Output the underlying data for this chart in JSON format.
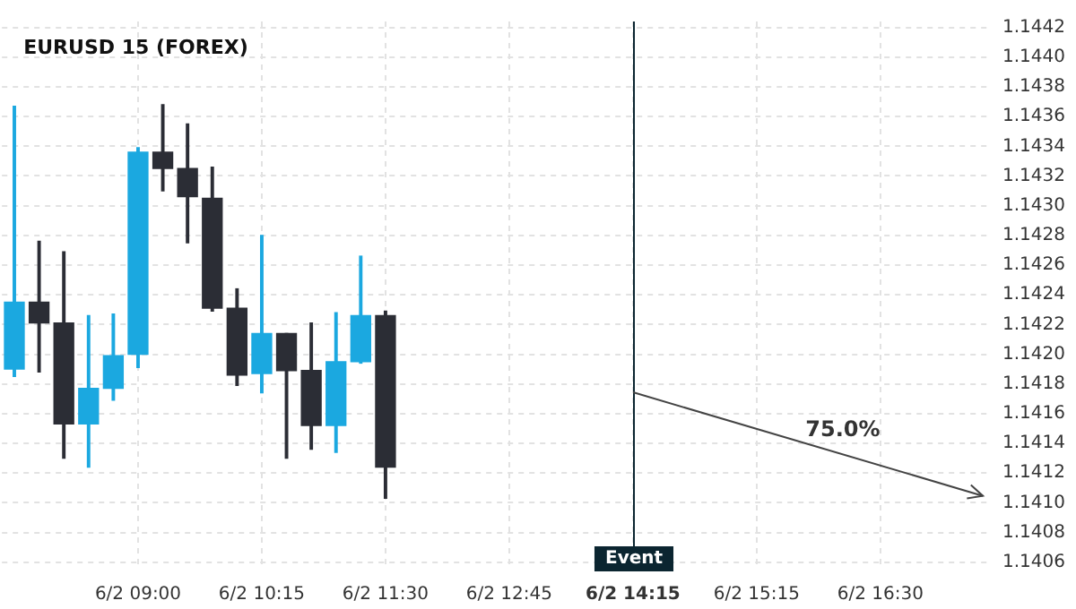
{
  "chart_data": {
    "type": "candlestick",
    "title": "EURUSD 15 (FOREX)",
    "categories": [
      null,
      null,
      null,
      null,
      null,
      "6/2 09:00",
      null,
      null,
      null,
      null,
      "6/2 10:15",
      null,
      null,
      null,
      null,
      "6/2 11:30",
      null,
      null,
      null,
      null,
      "6/2 12:45",
      null,
      null,
      null,
      null,
      "6/2 14:15",
      null,
      null,
      null,
      null,
      "6/2 15:15",
      null,
      null,
      null,
      null,
      "6/2 16:30",
      null,
      null,
      null,
      null
    ],
    "ohlc": [
      [
        1.1419,
        1.14367,
        1.14185,
        1.14235
      ],
      [
        1.14235,
        1.14276,
        1.14188,
        1.14221
      ],
      [
        1.14221,
        1.14269,
        1.1413,
        1.14153
      ],
      [
        1.14153,
        1.14226,
        1.14124,
        1.14177
      ],
      [
        1.14177,
        1.14227,
        1.14169,
        1.14199
      ],
      [
        1.142,
        1.14339,
        1.14191,
        1.14336
      ],
      [
        1.14336,
        1.14368,
        1.1431,
        1.14325
      ],
      [
        1.14325,
        1.14355,
        1.14275,
        1.14306
      ],
      [
        1.14305,
        1.14326,
        1.14229,
        1.14231
      ],
      [
        1.14231,
        1.14244,
        1.14179,
        1.14186
      ],
      [
        1.14187,
        1.1428,
        1.14174,
        1.14214
      ],
      [
        1.14214,
        1.14214,
        1.1413,
        1.14189
      ],
      [
        1.14189,
        1.14221,
        1.14136,
        1.14152
      ],
      [
        1.14152,
        1.14228,
        1.14134,
        1.14195
      ],
      [
        1.14195,
        1.14266,
        1.14194,
        1.14226
      ],
      [
        1.14226,
        1.14229,
        1.14103,
        1.14124
      ],
      null,
      null,
      null,
      null,
      null,
      null,
      null,
      null,
      null,
      null,
      null,
      null,
      null,
      null,
      null,
      null,
      null,
      null,
      null,
      null,
      null,
      null,
      null,
      null
    ],
    "colors": [
      "#1ba8e0",
      "#2b2d35",
      "#2b2d35",
      "#1ba8e0",
      "#1ba8e0",
      "#1ba8e0",
      "#2b2d35",
      "#2b2d35",
      "#2b2d35",
      "#2b2d35",
      "#1ba8e0",
      "#2b2d35",
      "#2b2d35",
      "#1ba8e0",
      "#1ba8e0",
      "#2b2d35",
      null,
      null,
      null,
      null,
      null,
      null,
      null,
      null,
      null,
      null,
      null,
      null,
      null,
      null,
      null,
      null,
      null,
      null,
      null,
      null,
      null,
      null,
      null,
      null
    ],
    "ylim": [
      1.14055,
      1.14424
    ],
    "yticks": [
      1.1406,
      1.1408,
      {
        "value": 1.141,
        "label": "1.1410"
      },
      1.1412,
      1.1414,
      1.1416,
      1.1418,
      {
        "value": 1.142,
        "label": "1.1420"
      },
      1.1422,
      1.1424,
      1.1426,
      1.1428,
      {
        "value": 1.143,
        "label": "1.1430"
      },
      1.1432,
      1.1434,
      1.1436,
      1.1438,
      {
        "value": 1.144,
        "label": "1.1440"
      },
      1.1442
    ],
    "ref_lines": [
      {
        "axis": "x",
        "value": "6/2 14:15",
        "label": "Event",
        "color": "#0b2530"
      }
    ],
    "annotations": [
      "75.0%"
    ],
    "grid": true,
    "legend": false
  }
}
